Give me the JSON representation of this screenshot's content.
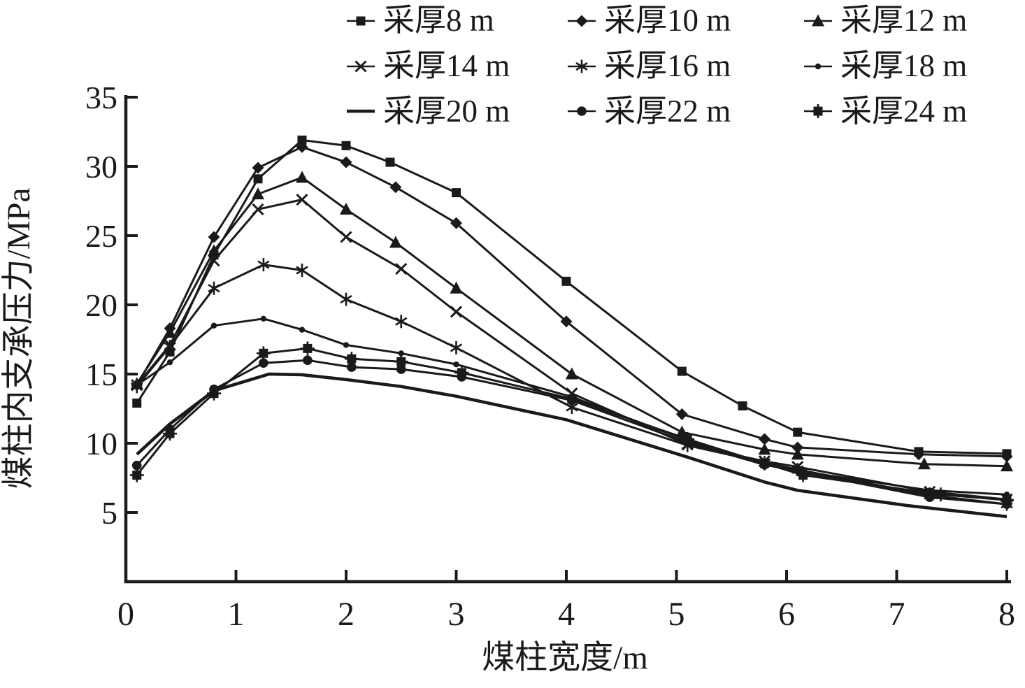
{
  "figure": {
    "background": "#ffffff",
    "ink": "#1a1a1a"
  },
  "chart_data": {
    "type": "line",
    "title": "",
    "xlabel": "煤柱宽度/m",
    "ylabel": "煤柱内支承压力/MPa",
    "xlim": [
      0,
      8
    ],
    "ylim": [
      0,
      35
    ],
    "xticks": [
      0,
      1,
      2,
      3,
      4,
      5,
      6,
      7,
      8
    ],
    "yticks": [
      5,
      10,
      15,
      20,
      25,
      30,
      35
    ],
    "grid": false,
    "legend_position": "top",
    "series": [
      {
        "label": "采厚8 m",
        "marker": "square",
        "x": [
          0.1,
          0.4,
          0.8,
          1.2,
          1.6,
          2.0,
          2.4,
          3.0,
          4.0,
          5.05,
          5.6,
          6.1,
          7.2,
          8.0
        ],
        "y": [
          12.9,
          16.6,
          23.6,
          29.1,
          31.9,
          31.5,
          30.3,
          28.1,
          21.7,
          15.2,
          12.7,
          10.8,
          9.4,
          9.25
        ]
      },
      {
        "label": "采厚10 m",
        "marker": "diamond",
        "x": [
          0.1,
          0.4,
          0.8,
          1.2,
          1.6,
          2.0,
          2.45,
          3.0,
          4.0,
          5.05,
          5.8,
          6.1,
          7.2,
          8.0
        ],
        "y": [
          14.2,
          18.3,
          24.9,
          29.9,
          31.4,
          30.3,
          28.5,
          25.9,
          18.8,
          12.1,
          10.3,
          9.7,
          9.2,
          9.05
        ]
      },
      {
        "label": "采厚12 m",
        "marker": "triangle",
        "x": [
          0.1,
          0.4,
          0.8,
          1.2,
          1.6,
          2.0,
          2.45,
          3.0,
          4.05,
          5.05,
          5.8,
          6.1,
          7.25,
          8.0
        ],
        "y": [
          14.3,
          18.0,
          23.9,
          28.0,
          29.2,
          26.9,
          24.5,
          21.2,
          15.0,
          10.8,
          9.55,
          9.2,
          8.5,
          8.35
        ]
      },
      {
        "label": "采厚14 m",
        "marker": "x",
        "x": [
          0.1,
          0.4,
          0.8,
          1.2,
          1.6,
          2.0,
          2.5,
          3.0,
          4.05,
          5.1,
          5.8,
          6.1,
          7.3,
          8.0
        ],
        "y": [
          14.2,
          17.1,
          23.2,
          26.9,
          27.6,
          24.9,
          22.6,
          19.5,
          13.6,
          9.9,
          8.7,
          8.3,
          6.5,
          5.95
        ]
      },
      {
        "label": "采厚16 m",
        "marker": "asterisk",
        "x": [
          0.1,
          0.4,
          0.8,
          1.25,
          1.6,
          2.0,
          2.5,
          3.0,
          4.05,
          5.1,
          5.8,
          6.1,
          7.3,
          8.0
        ],
        "y": [
          14.1,
          17.0,
          21.2,
          22.9,
          22.5,
          20.4,
          18.8,
          16.9,
          12.6,
          9.85,
          8.6,
          8.1,
          6.25,
          5.6
        ]
      },
      {
        "label": "采厚18 m",
        "marker": "dot",
        "x": [
          0.1,
          0.4,
          0.8,
          1.25,
          1.6,
          2.0,
          2.5,
          3.0,
          4.05,
          5.1,
          5.8,
          6.1,
          7.3,
          8.0
        ],
        "y": [
          14.2,
          15.85,
          18.5,
          19.0,
          18.2,
          17.1,
          16.5,
          15.7,
          13.35,
          10.2,
          8.5,
          8.0,
          6.6,
          6.3
        ]
      },
      {
        "label": "采厚20 m",
        "marker": "dash",
        "x": [
          0.1,
          0.4,
          0.8,
          1.3,
          1.6,
          2.0,
          2.5,
          3.0,
          4.0,
          5.1,
          5.8,
          6.1,
          7.1,
          8.0
        ],
        "y": [
          9.2,
          11.4,
          13.8,
          15.0,
          14.95,
          14.6,
          14.1,
          13.4,
          11.7,
          9.0,
          7.2,
          6.6,
          5.5,
          4.7
        ]
      },
      {
        "label": "采厚22 m",
        "marker": "circle",
        "x": [
          0.1,
          0.4,
          0.8,
          1.25,
          1.65,
          2.05,
          2.5,
          3.05,
          4.05,
          5.1,
          5.8,
          6.15,
          7.3,
          8.0
        ],
        "y": [
          8.4,
          11.0,
          13.9,
          15.8,
          16.0,
          15.5,
          15.35,
          14.8,
          13.1,
          10.05,
          8.45,
          7.9,
          6.1,
          5.6
        ]
      },
      {
        "label": "采厚24 m",
        "marker": "squareplus",
        "x": [
          0.1,
          0.4,
          0.8,
          1.25,
          1.65,
          2.05,
          2.5,
          3.05,
          4.05,
          5.1,
          5.8,
          6.15,
          7.4,
          8.0
        ],
        "y": [
          7.7,
          10.7,
          13.6,
          16.5,
          16.85,
          16.1,
          15.9,
          15.1,
          13.2,
          10.3,
          8.55,
          7.7,
          6.3,
          5.9
        ]
      }
    ]
  }
}
